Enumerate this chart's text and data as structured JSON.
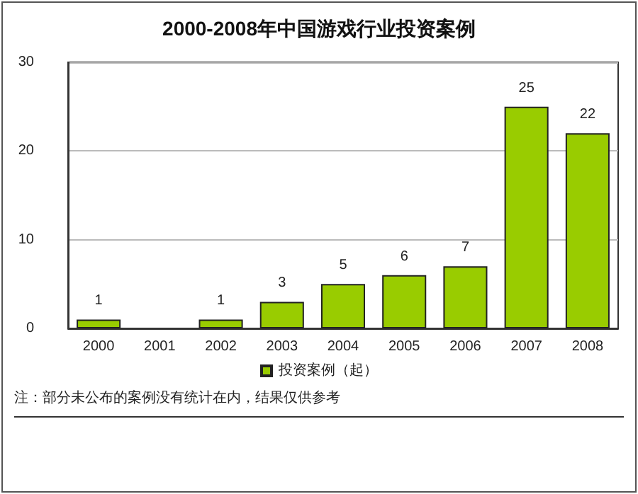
{
  "chart_data": {
    "type": "bar",
    "title": "2000-2008年中国游戏行业投资案例",
    "categories": [
      "2000",
      "2001",
      "2002",
      "2003",
      "2004",
      "2005",
      "2006",
      "2007",
      "2008"
    ],
    "series": [
      {
        "name": "投资案例（起）",
        "color": "#99cc00",
        "values": [
          1,
          0,
          1,
          3,
          5,
          6,
          7,
          25,
          22
        ]
      }
    ],
    "value_labels": [
      "1",
      null,
      "1",
      "3",
      "5",
      "6",
      "7",
      "25",
      "22"
    ],
    "ylim": [
      0,
      30
    ],
    "yticks": [
      0,
      10,
      20,
      30
    ],
    "grid": "y",
    "legend": "bottom",
    "annotations": [
      "注：部分未公布的案例没有统计在内，结果仅供参考"
    ]
  }
}
